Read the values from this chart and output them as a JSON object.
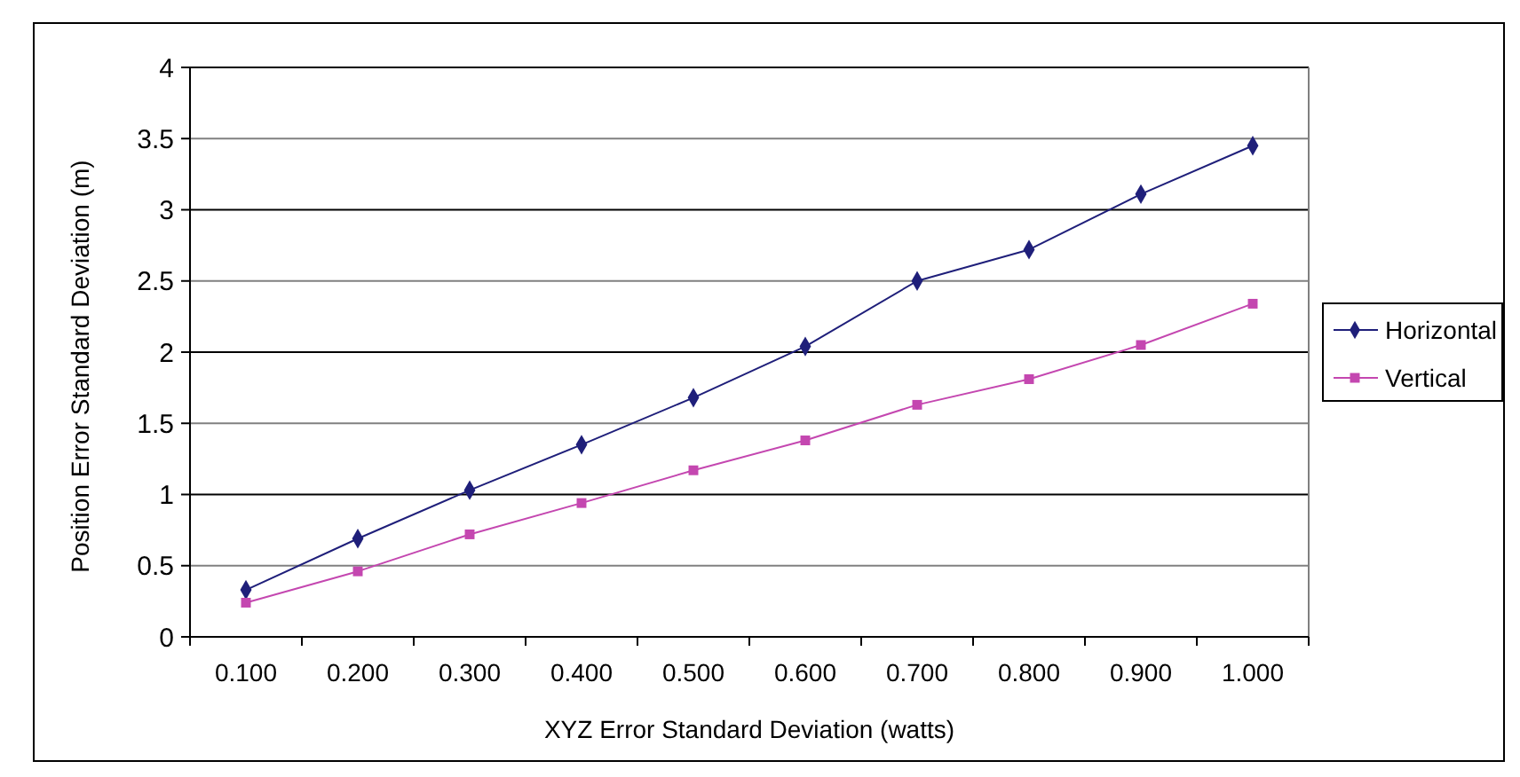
{
  "chart_data": {
    "type": "line",
    "xlabel": "XYZ Error Standard Deviation (watts)",
    "ylabel": "Position Error Standard Deviation (m)",
    "categories": [
      "0.100",
      "0.200",
      "0.300",
      "0.400",
      "0.500",
      "0.600",
      "0.700",
      "0.800",
      "0.900",
      "1.000"
    ],
    "series": [
      {
        "name": "Horizontal",
        "color": "#1f1f7a",
        "marker": "diamond",
        "values": [
          0.33,
          0.69,
          1.03,
          1.35,
          1.68,
          2.04,
          2.5,
          2.72,
          3.11,
          3.45
        ]
      },
      {
        "name": "Vertical",
        "color": "#c447b0",
        "marker": "square",
        "values": [
          0.24,
          0.46,
          0.72,
          0.94,
          1.17,
          1.38,
          1.63,
          1.81,
          2.05,
          2.34
        ]
      }
    ],
    "ylim": [
      0,
      4
    ],
    "yticks": [
      0,
      0.5,
      1,
      1.5,
      2,
      2.5,
      3,
      3.5,
      4
    ],
    "grid": "y",
    "legend": "right"
  }
}
